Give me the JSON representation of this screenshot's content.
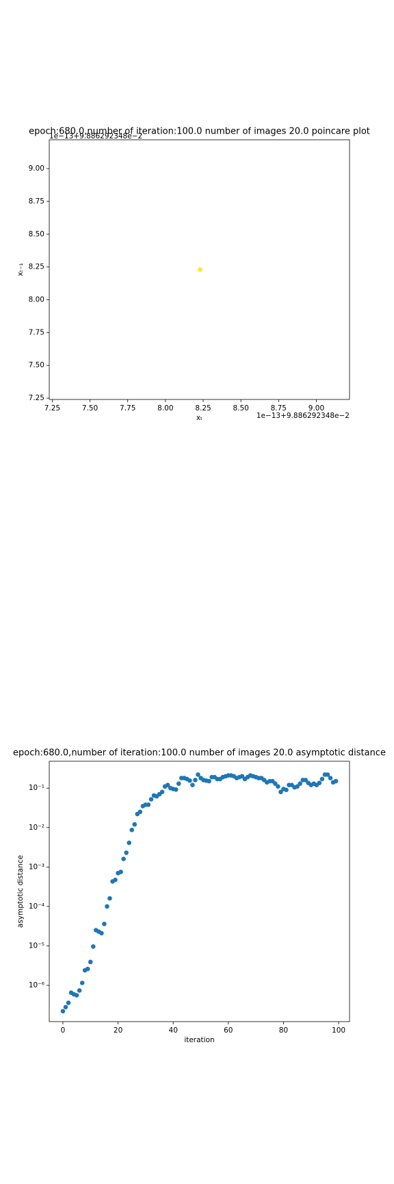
{
  "chart_data": [
    {
      "type": "scatter",
      "title": "epoch:680.0,number of iteration:100.0 number of images 20.0 poincare plot",
      "x_label": "xₜ",
      "y_label": "xₜ₋₁",
      "x_offset_label": "1e−13+9.886292348e−2",
      "y_offset_label": "1e−13+9.886292348e−2",
      "x": [
        8.23
      ],
      "values": [
        8.23
      ],
      "color": "#fde725",
      "xlim": [
        7.23,
        9.22
      ],
      "ylim": [
        7.24,
        9.22
      ],
      "xticks": [
        {
          "value": 7.25,
          "label": "7.25"
        },
        {
          "value": 7.5,
          "label": "7.50"
        },
        {
          "value": 7.75,
          "label": "7.75"
        },
        {
          "value": 8.0,
          "label": "8.00"
        },
        {
          "value": 8.25,
          "label": "8.25"
        },
        {
          "value": 8.5,
          "label": "8.50"
        },
        {
          "value": 8.75,
          "label": "8.75"
        },
        {
          "value": 9.0,
          "label": "9.00"
        }
      ],
      "yticks": [
        {
          "value": 7.25,
          "label": "7.25"
        },
        {
          "value": 7.5,
          "label": "7.50"
        },
        {
          "value": 7.75,
          "label": "7.75"
        },
        {
          "value": 8.0,
          "label": "8.00"
        },
        {
          "value": 8.25,
          "label": "8.25"
        },
        {
          "value": 8.5,
          "label": "8.50"
        },
        {
          "value": 8.75,
          "label": "8.75"
        },
        {
          "value": 9.0,
          "label": "9.00"
        }
      ],
      "log_y": false
    },
    {
      "type": "scatter",
      "title": "epoch:680.0,number of iteration:100.0  number of images 20.0 asymptotic distance",
      "x_label": "iteration",
      "y_label": "asymptotic distance",
      "x": [
        0,
        1,
        2,
        3,
        4,
        5,
        6,
        7,
        8,
        9,
        10,
        11,
        12,
        13,
        14,
        15,
        16,
        17,
        18,
        19,
        20,
        21,
        22,
        23,
        24,
        25,
        26,
        27,
        28,
        29,
        30,
        31,
        32,
        33,
        34,
        35,
        36,
        37,
        38,
        39,
        40,
        41,
        42,
        43,
        44,
        45,
        46,
        47,
        48,
        49,
        50,
        51,
        52,
        53,
        54,
        55,
        56,
        57,
        58,
        59,
        60,
        61,
        62,
        63,
        64,
        65,
        66,
        67,
        68,
        69,
        70,
        71,
        72,
        73,
        74,
        75,
        76,
        77,
        78,
        79,
        80,
        81,
        82,
        83,
        84,
        85,
        86,
        87,
        88,
        89,
        90,
        91,
        92,
        93,
        94,
        95,
        96,
        97,
        98,
        99
      ],
      "values": [
        2.2e-07,
        2.8e-07,
        3.6e-07,
        6.5e-07,
        5.9e-07,
        5.6e-07,
        7.4e-07,
        1.15e-06,
        2.4e-06,
        2.6e-06,
        3.9e-06,
        9.6e-06,
        2.5e-05,
        2.3e-05,
        2.1e-05,
        3.6e-05,
        0.0001,
        0.00016,
        0.00043,
        0.00047,
        0.0007,
        0.00075,
        0.0016,
        0.0023,
        0.0041,
        0.0087,
        0.012,
        0.022,
        0.025,
        0.035,
        0.038,
        0.038,
        0.052,
        0.065,
        0.062,
        0.07,
        0.08,
        0.11,
        0.12,
        0.1,
        0.095,
        0.092,
        0.13,
        0.18,
        0.18,
        0.17,
        0.155,
        0.12,
        0.16,
        0.22,
        0.18,
        0.16,
        0.155,
        0.15,
        0.19,
        0.19,
        0.17,
        0.17,
        0.19,
        0.2,
        0.21,
        0.21,
        0.2,
        0.18,
        0.19,
        0.2,
        0.17,
        0.19,
        0.21,
        0.2,
        0.19,
        0.18,
        0.18,
        0.16,
        0.14,
        0.15,
        0.15,
        0.13,
        0.11,
        0.08,
        0.095,
        0.09,
        0.12,
        0.12,
        0.105,
        0.11,
        0.13,
        0.16,
        0.16,
        0.135,
        0.12,
        0.13,
        0.12,
        0.135,
        0.17,
        0.22,
        0.22,
        0.18,
        0.14,
        0.15
      ],
      "color": "#1f77b4",
      "xlim": [
        -4.95,
        103.95
      ],
      "ylim": [
        1.2e-07,
        0.48
      ],
      "xticks": [
        0,
        20,
        40,
        60,
        80,
        100
      ],
      "yticks": [
        {
          "value": 1e-06,
          "label": "10⁻⁶"
        },
        {
          "value": 1e-05,
          "label": "10⁻⁵"
        },
        {
          "value": 0.0001,
          "label": "10⁻⁴"
        },
        {
          "value": 0.001,
          "label": "10⁻³"
        },
        {
          "value": 0.01,
          "label": "10⁻²"
        },
        {
          "value": 0.1,
          "label": "10⁻¹"
        }
      ],
      "log_y": true
    }
  ]
}
